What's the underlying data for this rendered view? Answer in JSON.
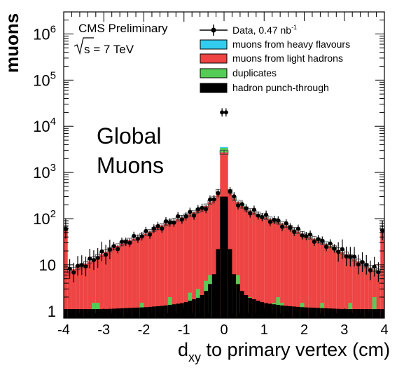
{
  "chart_data": {
    "type": "bar",
    "title": "",
    "xlabel_main": "d",
    "xlabel_sub": "xy",
    "xlabel_rest": " to primary vertex (cm)",
    "ylabel": "muons",
    "xlim": [
      -4,
      4
    ],
    "ylim": [
      0.7,
      3000000
    ],
    "yscale": "log",
    "x_ticks": [
      "-4",
      "-3",
      "-2",
      "-1",
      "0",
      "1",
      "2",
      "3",
      "4"
    ],
    "y_ticks": [
      {
        "base": "1",
        "exp": ""
      },
      {
        "base": "10",
        "exp": ""
      },
      {
        "base": "10",
        "exp": "2"
      },
      {
        "base": "10",
        "exp": "3"
      },
      {
        "base": "10",
        "exp": "4"
      },
      {
        "base": "10",
        "exp": "5"
      },
      {
        "base": "10",
        "exp": "6"
      }
    ],
    "experiment": "CMS Preliminary",
    "energy": "s = 7 TeV",
    "overlay_text": [
      "Global",
      "Muons"
    ],
    "legend": [
      {
        "label": "Data, 0.47 nb",
        "sup": "-1",
        "kind": "data"
      },
      {
        "label": "muons from heavy flavours",
        "color": "#33ccee",
        "kind": "fill"
      },
      {
        "label": "muons from light hadrons",
        "color": "#ee4444",
        "kind": "fill"
      },
      {
        "label": "duplicates",
        "color": "#55cc55",
        "kind": "fill"
      },
      {
        "label": "hadron punch-through",
        "color": "#000000",
        "kind": "fill"
      }
    ],
    "colors": {
      "heavy": "#33ccee",
      "light": "#ee4444",
      "duplicates": "#55cc55",
      "punch": "#000000",
      "frame_bg": "#ffffff"
    },
    "light_profile": {
      "x": [
        0.0,
        0.1,
        0.2,
        0.3,
        0.5,
        0.8,
        1.0,
        1.5,
        2.0,
        2.5,
        3.0,
        3.5,
        3.9,
        4.0
      ],
      "y": [
        15000,
        500,
        300,
        250,
        170,
        130,
        110,
        75,
        45,
        30,
        18,
        10,
        7,
        60
      ]
    },
    "peak_data_value": 20000,
    "punch_profile": {
      "x": [
        0.0,
        0.05,
        0.1,
        0.2,
        0.4,
        0.6,
        1.0,
        1.5,
        2.0,
        3.0,
        4.0
      ],
      "y": [
        400,
        300,
        60,
        8,
        3,
        2,
        1.5,
        1.3,
        1.2,
        1.1,
        1.1
      ]
    },
    "duplicate_bins": [
      {
        "x": -3.2,
        "y": 1.5
      },
      {
        "x": -2.0,
        "y": 1.5
      },
      {
        "x": -1.3,
        "y": 2.0
      },
      {
        "x": -0.8,
        "y": 2.5
      },
      {
        "x": -0.6,
        "y": 3.0
      },
      {
        "x": -0.4,
        "y": 4.5
      },
      {
        "x": -0.3,
        "y": 6.0
      },
      {
        "x": -0.2,
        "y": 3.5
      },
      {
        "x": 0.2,
        "y": 4.0
      },
      {
        "x": 0.3,
        "y": 6.0
      },
      {
        "x": 0.4,
        "y": 3.0
      },
      {
        "x": 0.5,
        "y": 2.5
      },
      {
        "x": 0.7,
        "y": 2.0
      },
      {
        "x": 1.3,
        "y": 1.5
      },
      {
        "x": 1.4,
        "y": 2.0
      },
      {
        "x": 1.5,
        "y": 1.5
      },
      {
        "x": 2.0,
        "y": 1.5
      },
      {
        "x": 2.5,
        "y": 1.5
      },
      {
        "x": 3.2,
        "y": 1.5
      },
      {
        "x": 3.8,
        "y": 2.0
      }
    ]
  }
}
